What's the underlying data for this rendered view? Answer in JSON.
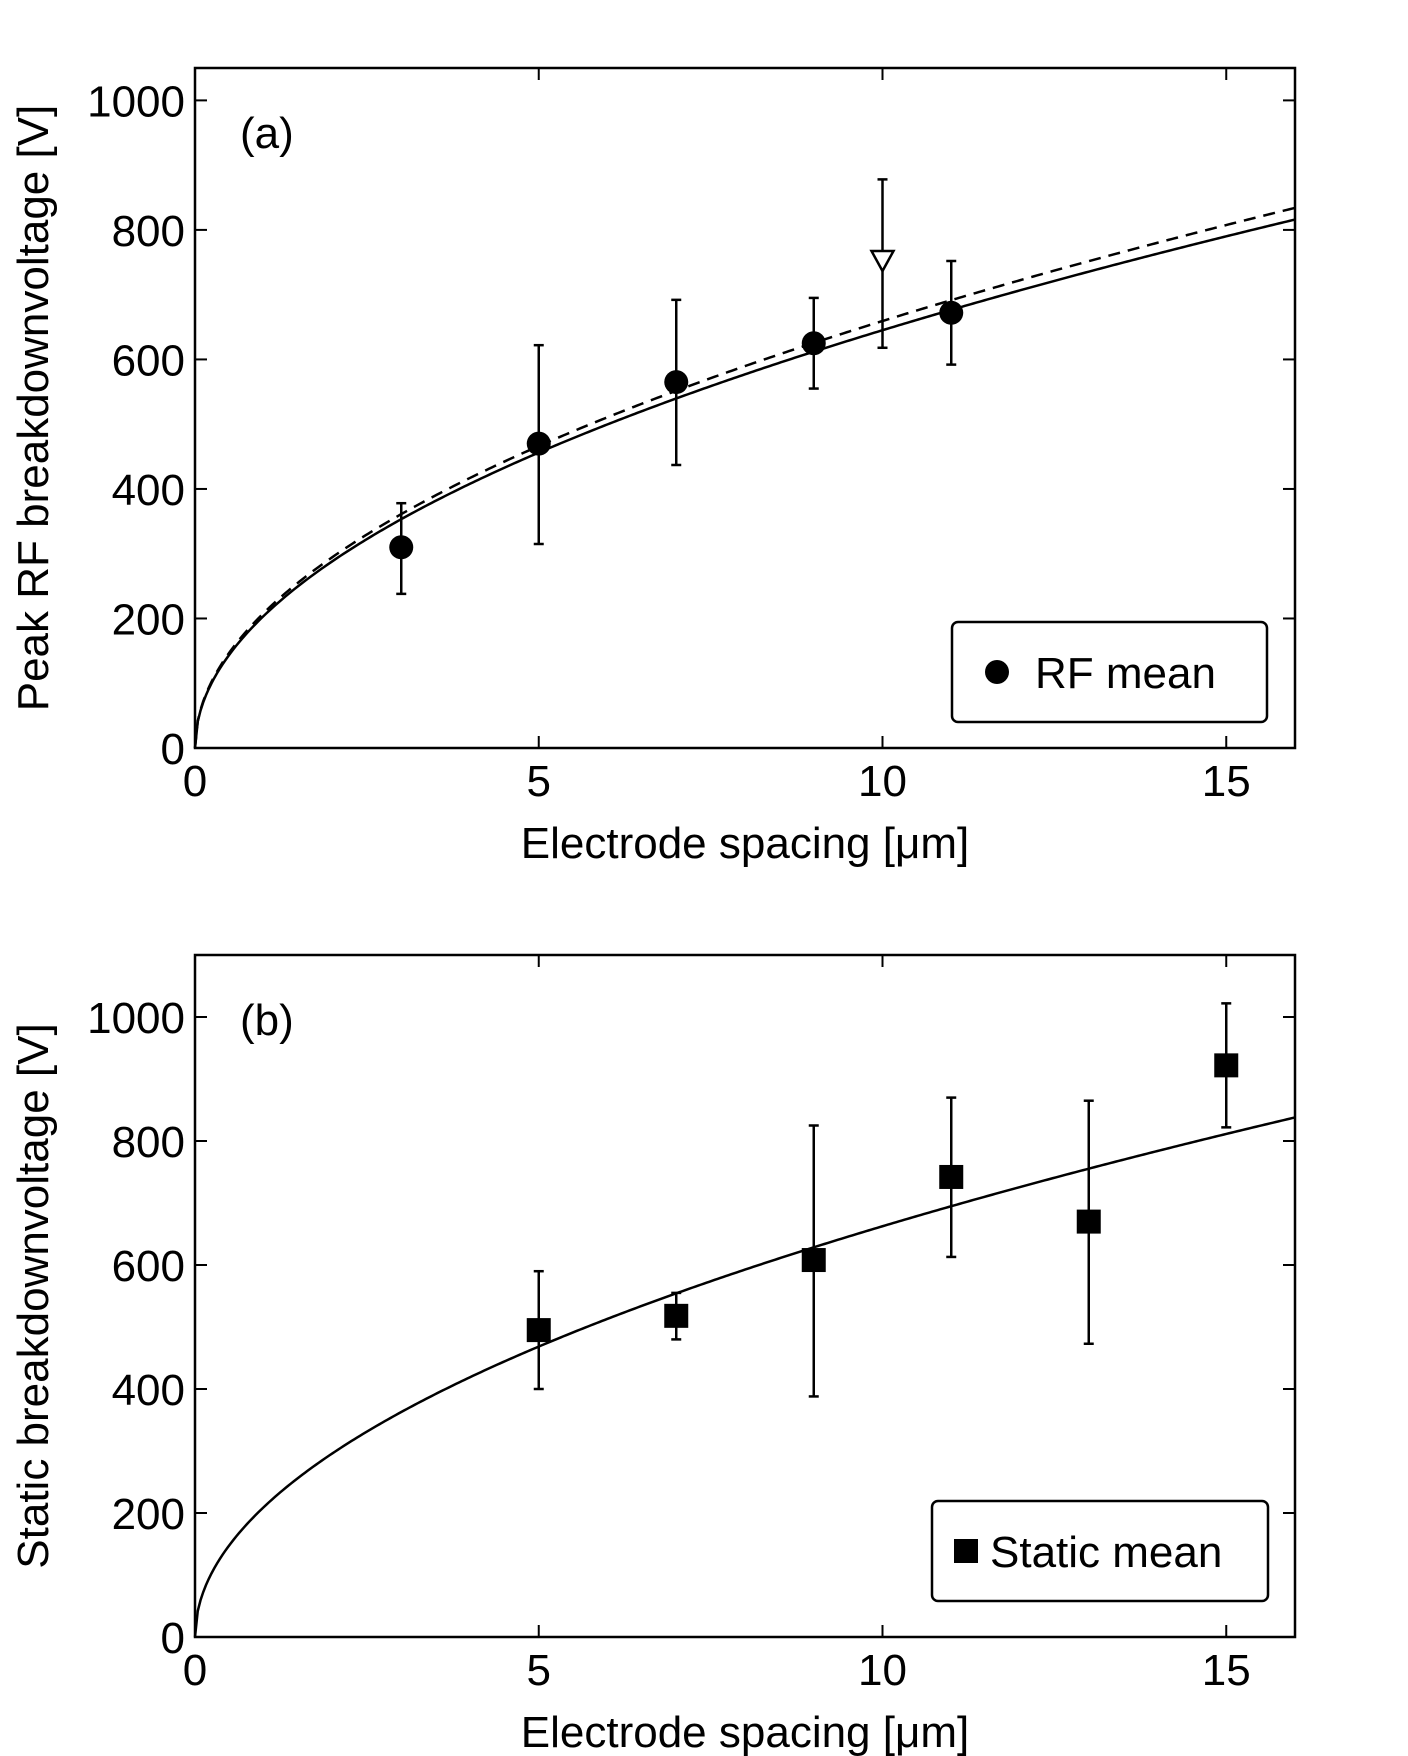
{
  "chart_data": [
    {
      "type": "scatter",
      "panel_label": "(a)",
      "xlabel": "Electrode spacing [μm]",
      "ylabel": "Peak RF breakdownvoltage [V]",
      "xlim": [
        0,
        16
      ],
      "ylim": [
        0,
        1050
      ],
      "x_ticks": [
        0,
        5,
        10,
        15
      ],
      "y_ticks": [
        0,
        200,
        400,
        600,
        800,
        1000
      ],
      "legend": {
        "label": "RF mean",
        "marker": "circle",
        "position": "bottom-right"
      },
      "series": [
        {
          "name": "RF mean",
          "marker": "circle",
          "x": [
            3,
            5,
            7,
            9,
            11
          ],
          "y": [
            310,
            470,
            565,
            625,
            672
          ],
          "err_low": [
            238,
            315,
            437,
            555,
            592
          ],
          "err_high": [
            378,
            622,
            692,
            695,
            752
          ]
        },
        {
          "name": "open triangle",
          "marker": "triangle-down-open",
          "x": [
            10
          ],
          "y": [
            752
          ],
          "err_low": [
            618
          ],
          "err_high": [
            878
          ]
        },
        {
          "name": "solid fit",
          "line": "solid",
          "model": "a*sqrt(x)",
          "a": 204
        },
        {
          "name": "dashed fit",
          "line": "dashed",
          "model": "a*sqrt(x)",
          "a": 208.5
        }
      ]
    },
    {
      "type": "scatter",
      "panel_label": "(b)",
      "xlabel": "Electrode spacing [μm]",
      "ylabel": "Static breakdownvoltage [V]",
      "xlim": [
        0,
        16
      ],
      "ylim": [
        0,
        1100
      ],
      "x_ticks": [
        0,
        5,
        10,
        15
      ],
      "y_ticks": [
        0,
        200,
        400,
        600,
        800,
        1000
      ],
      "legend": {
        "label": "Static mean",
        "marker": "square",
        "position": "bottom-right"
      },
      "series": [
        {
          "name": "Static mean",
          "marker": "square",
          "x": [
            5,
            7,
            9,
            11,
            13,
            15
          ],
          "y": [
            495,
            518,
            608,
            742,
            670,
            922
          ],
          "err_low": [
            400,
            480,
            388,
            613,
            473,
            822
          ],
          "err_high": [
            590,
            555,
            825,
            870,
            865,
            1022
          ]
        },
        {
          "name": "solid fit",
          "line": "solid",
          "model": "a*sqrt(x)",
          "a": 209.5
        }
      ]
    }
  ]
}
